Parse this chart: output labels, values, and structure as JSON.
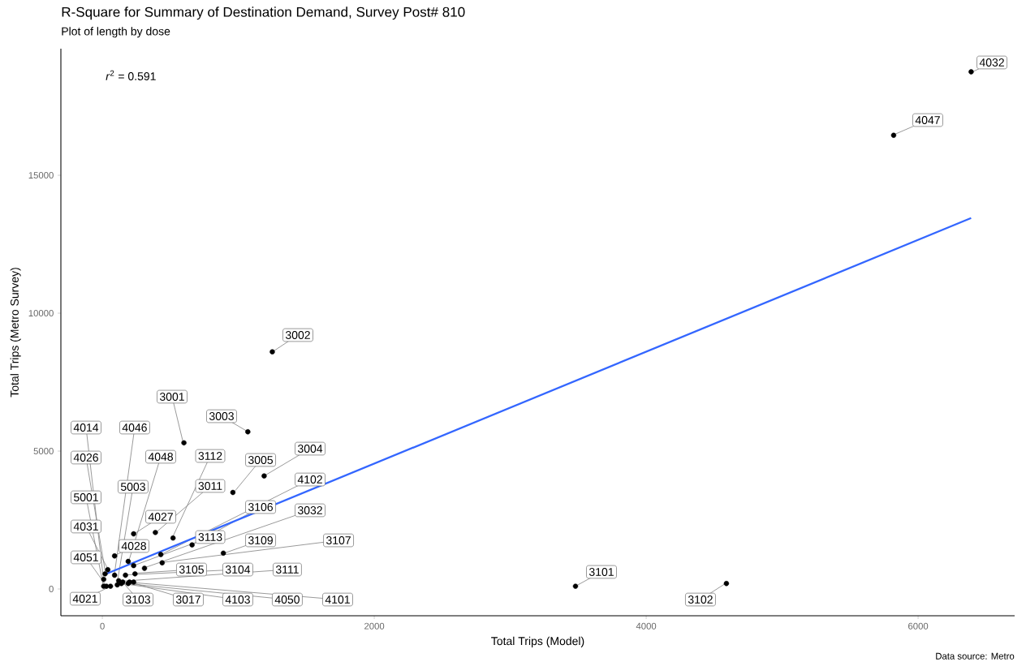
{
  "chart_data": {
    "type": "scatter",
    "title": "R-Square for Summary of Destination Demand, Survey Post# 810",
    "subtitle": "Plot of length by dose",
    "xlabel": "Total Trips (Model)",
    "ylabel": "Total Trips (Metro Survey)",
    "xlim": [
      -305,
      6710
    ],
    "ylim": [
      -970,
      19590
    ],
    "xticks": [
      0,
      2000,
      4000,
      6000
    ],
    "yticks": [
      0,
      5000,
      10000,
      15000
    ],
    "marker": "circle",
    "series": [
      {
        "color": "#000000",
        "x": [
          6390,
          5820,
          1250,
          600,
          1070,
          1190,
          960,
          520,
          390,
          230,
          660,
          430,
          890,
          440,
          230,
          310,
          190,
          90,
          90,
          110,
          170,
          240,
          40,
          20,
          10,
          10,
          30,
          60,
          120,
          150,
          200,
          140,
          190,
          230,
          3480,
          4590
        ],
        "values": [
          18750,
          16450,
          8600,
          5300,
          5700,
          4100,
          3500,
          1850,
          2050,
          2000,
          1600,
          1250,
          1300,
          950,
          850,
          750,
          1000,
          1200,
          500,
          150,
          500,
          550,
          700,
          550,
          350,
          100,
          100,
          100,
          300,
          250,
          250,
          200,
          200,
          250,
          100,
          200
        ]
      },
      {
        "type": "line",
        "marker": "none",
        "color": "#3366ff",
        "x": [
          30,
          6390
        ],
        "values": [
          550,
          13450
        ]
      }
    ],
    "annotations": [
      "*r*$^{2}$ = 0.591",
      {
        "text": "4032",
        "x": 6394,
        "y": 18735
      },
      {
        "text": "4047",
        "x": 5821,
        "y": 16470
      },
      {
        "text": "3002",
        "x": 1248,
        "y": 8588
      },
      {
        "text": "3001",
        "x": 595,
        "y": 5294
      },
      {
        "text": "3003",
        "x": 1069,
        "y": 5706
      },
      {
        "text": "3004",
        "x": 1186,
        "y": 4088
      },
      {
        "text": "3005",
        "x": 963,
        "y": 3480
      },
      {
        "text": "3112",
        "x": 515,
        "y": 1860
      },
      {
        "text": "3011",
        "x": 392,
        "y": 2040
      },
      {
        "text": "4027",
        "x": 227,
        "y": 1980
      },
      {
        "text": "3106",
        "x": 661,
        "y": 1600
      },
      {
        "text": "4102",
        "x": 426,
        "y": 1235
      },
      {
        "text": "3109",
        "x": 894,
        "y": 1294
      },
      {
        "text": "3107",
        "x": 436,
        "y": 961
      },
      {
        "text": "3113",
        "x": 227,
        "y": 843
      },
      {
        "text": "3032",
        "x": 306,
        "y": 765
      },
      {
        "text": "4048",
        "x": 193,
        "y": 990
      },
      {
        "text": "4028",
        "x": 88,
        "y": 1206
      },
      {
        "text": "4046",
        "x": 88,
        "y": 500
      },
      {
        "text": "5003",
        "x": 107,
        "y": 156
      },
      {
        "text": "3104",
        "x": 167,
        "y": 510
      },
      {
        "text": "3105",
        "x": 239,
        "y": 570
      },
      {
        "text": "4031",
        "x": 44,
        "y": 686
      },
      {
        "text": "4026",
        "x": 24,
        "y": 550
      },
      {
        "text": "4014",
        "x": 8,
        "y": 373
      },
      {
        "text": "5001",
        "x": 8,
        "y": 97
      },
      {
        "text": "4051",
        "x": 34,
        "y": 76
      },
      {
        "text": "4021",
        "x": 64,
        "y": 109
      },
      {
        "text": "3111",
        "x": 115,
        "y": 274
      },
      {
        "text": "3103",
        "x": 153,
        "y": 226
      },
      {
        "text": "3017",
        "x": 203,
        "y": 255
      },
      {
        "text": "4103",
        "x": 140,
        "y": 200
      },
      {
        "text": "4050",
        "x": 190,
        "y": 190
      },
      {
        "text": "4101",
        "x": 230,
        "y": 230
      },
      {
        "text": "3101",
        "x": 3475,
        "y": 88
      },
      {
        "text": "3102",
        "x": 4585,
        "y": 206
      },
      "Data source: Metro"
    ]
  }
}
